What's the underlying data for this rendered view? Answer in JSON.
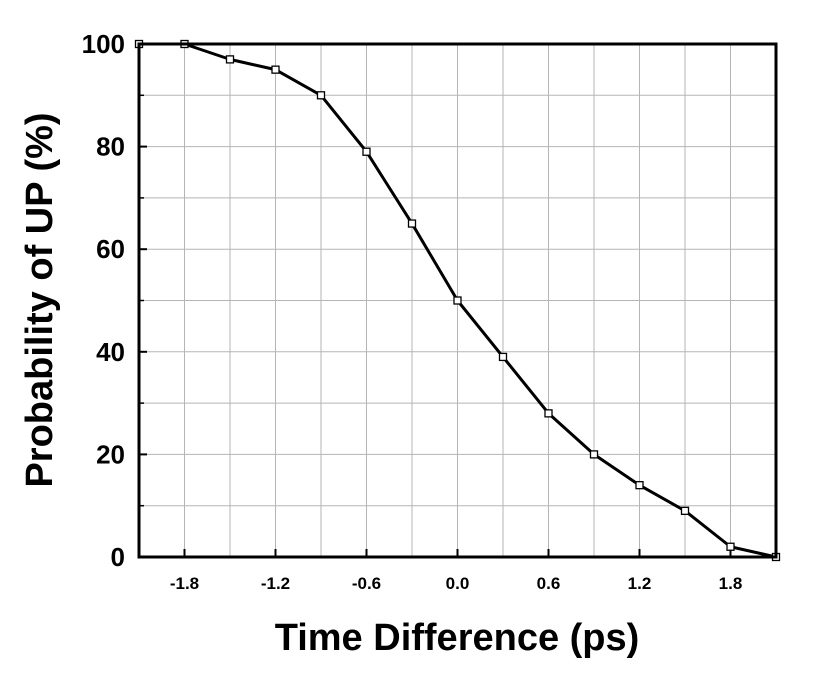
{
  "chart_data": {
    "type": "line",
    "title": "",
    "xlabel": "Time Difference (ps)",
    "ylabel": "Probability of UP (%)",
    "xlim": [
      -2.1,
      2.1
    ],
    "ylim": [
      0,
      100
    ],
    "xticks": [
      -1.8,
      -1.2,
      -0.6,
      0.0,
      0.6,
      1.2,
      1.8
    ],
    "xtick_labels": [
      "-1.8",
      "-1.2",
      "-0.6",
      "0.0",
      "0.6",
      "1.2",
      "1.8"
    ],
    "yticks": [
      0,
      20,
      40,
      60,
      80,
      100
    ],
    "ytick_labels": [
      "0",
      "20",
      "40",
      "60",
      "80",
      "100"
    ],
    "grid": true,
    "line_color": "#000000",
    "marker": "open-square",
    "series": [
      {
        "x": [
          -2.1,
          -1.8,
          -1.5,
          -1.2,
          -0.9,
          -0.6,
          -0.3,
          0.0,
          0.3,
          0.6,
          0.9,
          1.2,
          1.5,
          1.8,
          2.1
        ],
        "y": [
          100,
          100,
          97,
          95,
          90,
          79,
          65,
          50,
          39,
          28,
          20,
          14,
          9,
          2,
          0
        ]
      }
    ]
  }
}
